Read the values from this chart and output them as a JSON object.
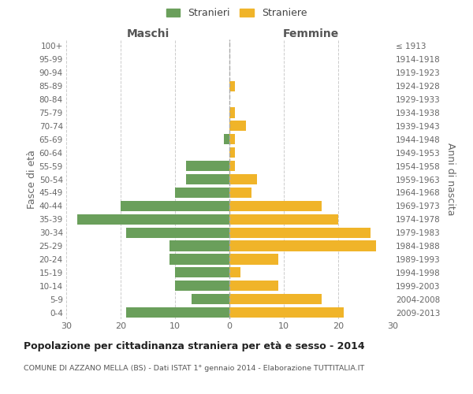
{
  "age_groups_bottom_to_top": [
    "0-4",
    "5-9",
    "10-14",
    "15-19",
    "20-24",
    "25-29",
    "30-34",
    "35-39",
    "40-44",
    "45-49",
    "50-54",
    "55-59",
    "60-64",
    "65-69",
    "70-74",
    "75-79",
    "80-84",
    "85-89",
    "90-94",
    "95-99",
    "100+"
  ],
  "birth_years_bottom_to_top": [
    "2009-2013",
    "2004-2008",
    "1999-2003",
    "1994-1998",
    "1989-1993",
    "1984-1988",
    "1979-1983",
    "1974-1978",
    "1969-1973",
    "1964-1968",
    "1959-1963",
    "1954-1958",
    "1949-1953",
    "1944-1948",
    "1939-1943",
    "1934-1938",
    "1929-1933",
    "1924-1928",
    "1919-1923",
    "1914-1918",
    "≤ 1913"
  ],
  "males_bottom_to_top": [
    19,
    7,
    10,
    10,
    11,
    11,
    19,
    28,
    20,
    10,
    8,
    8,
    0,
    1,
    0,
    0,
    0,
    0,
    0,
    0,
    0
  ],
  "females_bottom_to_top": [
    21,
    17,
    9,
    2,
    9,
    27,
    26,
    20,
    17,
    4,
    5,
    1,
    1,
    1,
    3,
    1,
    0,
    1,
    0,
    0,
    0
  ],
  "male_color": "#6a9f5b",
  "female_color": "#f0b429",
  "background_color": "#ffffff",
  "grid_color": "#cccccc",
  "title": "Popolazione per cittadinanza straniera per età e sesso - 2014",
  "subtitle": "COMUNE DI AZZANO MELLA (BS) - Dati ISTAT 1° gennaio 2014 - Elaborazione TUTTITALIA.IT",
  "ylabel_left": "Fasce di età",
  "ylabel_right": "Anni di nascita",
  "label_maschi": "Maschi",
  "label_femmine": "Femmine",
  "legend_stranieri": "Stranieri",
  "legend_straniere": "Straniere",
  "xlim": 30,
  "figsize": [
    6.0,
    5.0
  ],
  "dpi": 100
}
